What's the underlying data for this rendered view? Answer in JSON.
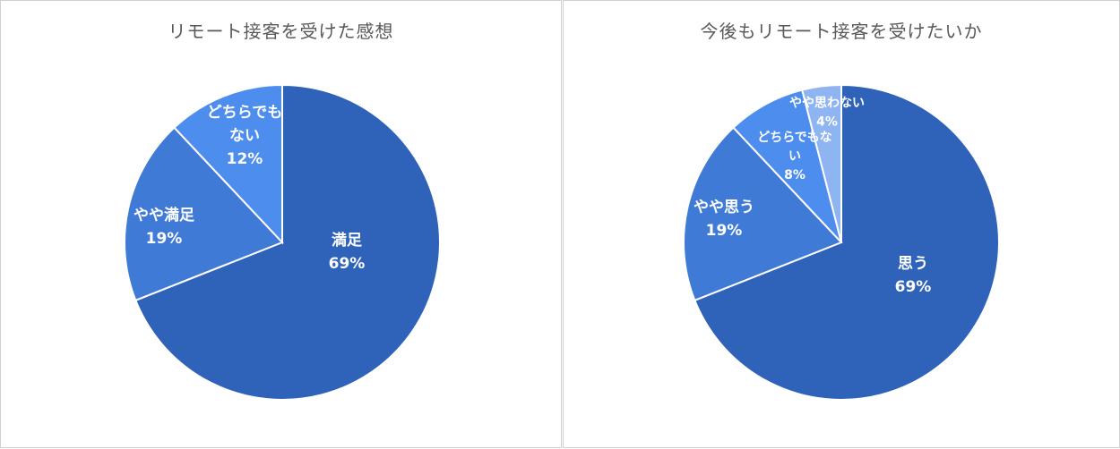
{
  "chart_data": [
    {
      "type": "pie",
      "title": "リモート接客を受けた感想",
      "slices": [
        {
          "label_lines": [
            "満足",
            "69%"
          ],
          "value": 69,
          "color": "#2e63b9"
        },
        {
          "label_lines": [
            "やや満足",
            "19%"
          ],
          "value": 19,
          "color": "#3f7ad6"
        },
        {
          "label_lines": [
            "どちらでも",
            "ない",
            "12%"
          ],
          "value": 12,
          "color": "#4d8ded"
        }
      ]
    },
    {
      "type": "pie",
      "title": "今後もリモート接客を受けたいか",
      "slices": [
        {
          "label_lines": [
            "思う",
            "69%"
          ],
          "value": 69,
          "color": "#2e63b9"
        },
        {
          "label_lines": [
            "やや思う",
            "19%"
          ],
          "value": 19,
          "color": "#3f7ad6"
        },
        {
          "label_lines": [
            "どちらでもな",
            "い",
            "8%"
          ],
          "value": 8,
          "color": "#4d8ded"
        },
        {
          "label_lines": [
            "やや思わない",
            "4%"
          ],
          "value": 4,
          "color": "#8fb4f2"
        }
      ]
    }
  ]
}
